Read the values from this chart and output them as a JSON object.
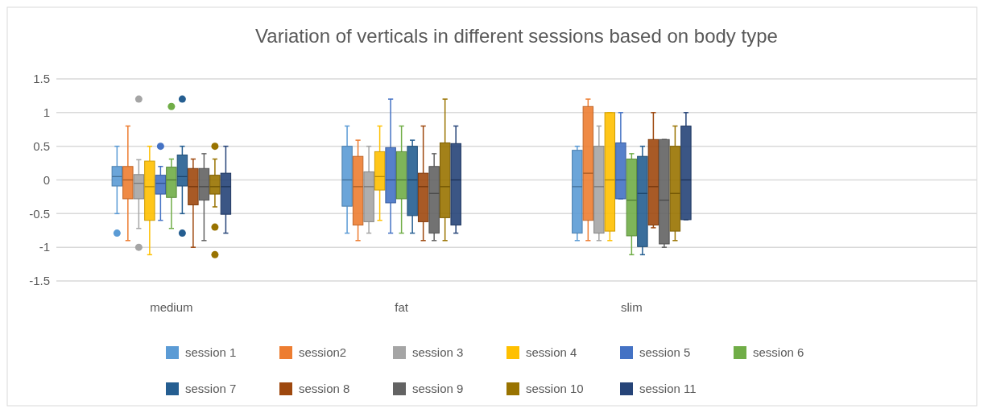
{
  "chart_data": {
    "type": "box",
    "title": "Variation of verticals in different sessions based on body type",
    "categories": [
      "medium",
      "fat",
      "slim",
      null
    ],
    "ylim": [
      -1.5,
      1.5
    ],
    "yticks": [
      -1.5,
      -1,
      -0.5,
      0,
      0.5,
      1,
      1.5
    ],
    "grid": "y",
    "legend": "bottom",
    "series": [
      {
        "name": "session 1",
        "color": "#5b9bd5",
        "boxes": [
          {
            "low": -0.5,
            "q1": -0.09,
            "median": 0.05,
            "q3": 0.2,
            "high": 0.5,
            "outliers": [
              -0.79
            ]
          },
          {
            "low": -0.79,
            "q1": -0.39,
            "median": 0.0,
            "q3": 0.5,
            "high": 0.8
          },
          {
            "low": -0.9,
            "q1": -0.79,
            "median": -0.1,
            "q3": 0.44,
            "high": 0.5
          },
          null
        ]
      },
      {
        "name": "session2",
        "color": "#ed7d31",
        "boxes": [
          {
            "low": -0.9,
            "q1": -0.28,
            "median": 0.0,
            "q3": 0.2,
            "high": 0.8
          },
          {
            "low": -0.9,
            "q1": -0.67,
            "median": -0.1,
            "q3": 0.35,
            "high": 0.59
          },
          {
            "low": -0.9,
            "q1": -0.6,
            "median": 0.1,
            "q3": 1.09,
            "high": 1.2
          },
          null
        ]
      },
      {
        "name": "session 3",
        "color": "#a5a5a5",
        "boxes": [
          {
            "low": -0.72,
            "q1": -0.28,
            "median": -0.05,
            "q3": 0.08,
            "high": 0.3,
            "outliers": [
              1.2,
              -1.0
            ]
          },
          {
            "low": -0.79,
            "q1": -0.62,
            "median": -0.1,
            "q3": 0.12,
            "high": 0.5
          },
          {
            "low": -0.9,
            "q1": -0.79,
            "median": -0.1,
            "q3": 0.5,
            "high": 0.8
          },
          null
        ]
      },
      {
        "name": "session 4",
        "color": "#ffc000",
        "boxes": [
          {
            "low": -1.11,
            "q1": -0.6,
            "median": -0.1,
            "q3": 0.28,
            "high": 0.5
          },
          {
            "low": -0.6,
            "q1": -0.15,
            "median": 0.05,
            "q3": 0.42,
            "high": 0.8
          },
          {
            "low": -0.9,
            "q1": -0.76,
            "median": 0.0,
            "q3": 1.0,
            "high": 1.0
          },
          null
        ]
      },
      {
        "name": "session 5",
        "color": "#4472c4",
        "boxes": [
          {
            "low": -0.6,
            "q1": -0.21,
            "median": -0.05,
            "q3": 0.07,
            "high": 0.2,
            "outliers": [
              0.5
            ]
          },
          {
            "low": -0.79,
            "q1": -0.34,
            "median": 0.0,
            "q3": 0.48,
            "high": 1.2
          },
          {
            "low": -0.28,
            "q1": -0.28,
            "median": 0.0,
            "q3": 0.55,
            "high": 1.0
          },
          null
        ]
      },
      {
        "name": "session 6",
        "color": "#70ad47",
        "boxes": [
          {
            "low": -0.72,
            "q1": -0.26,
            "median": 0.0,
            "q3": 0.19,
            "high": 0.31,
            "outliers": [
              1.09
            ]
          },
          {
            "low": -0.79,
            "q1": -0.28,
            "median": 0.0,
            "q3": 0.42,
            "high": 0.8
          },
          {
            "low": -1.11,
            "q1": -0.83,
            "median": -0.3,
            "q3": 0.31,
            "high": 0.39
          },
          null
        ]
      },
      {
        "name": "session 7",
        "color": "#255e91",
        "boxes": [
          {
            "low": -0.5,
            "q1": -0.09,
            "median": 0.05,
            "q3": 0.37,
            "high": 0.5,
            "outliers": [
              1.2,
              -0.79
            ]
          },
          {
            "low": -0.79,
            "q1": -0.53,
            "median": 0.0,
            "q3": 0.5,
            "high": 0.59
          },
          {
            "low": -1.11,
            "q1": -0.99,
            "median": -0.2,
            "q3": 0.35,
            "high": 0.5
          },
          null
        ]
      },
      {
        "name": "session 8",
        "color": "#9e480e",
        "boxes": [
          {
            "low": -1.0,
            "q1": -0.37,
            "median": -0.1,
            "q3": 0.17,
            "high": 0.31
          },
          {
            "low": -0.9,
            "q1": -0.62,
            "median": -0.1,
            "q3": 0.1,
            "high": 0.8
          },
          {
            "low": -0.71,
            "q1": -0.67,
            "median": -0.1,
            "q3": 0.6,
            "high": 1.0
          },
          null
        ]
      },
      {
        "name": "session 9",
        "color": "#636363",
        "boxes": [
          {
            "low": -0.9,
            "q1": -0.3,
            "median": -0.1,
            "q3": 0.17,
            "high": 0.39
          },
          {
            "low": -0.9,
            "q1": -0.79,
            "median": -0.2,
            "q3": 0.2,
            "high": 0.39
          },
          {
            "low": -1.0,
            "q1": -0.95,
            "median": -0.3,
            "q3": 0.6,
            "high": 0.6
          },
          null
        ]
      },
      {
        "name": "session 10",
        "color": "#997300",
        "boxes": [
          {
            "low": -0.4,
            "q1": -0.21,
            "median": -0.1,
            "q3": 0.07,
            "high": 0.31,
            "outliers": [
              0.5,
              -0.7,
              -1.11
            ]
          },
          {
            "low": -0.9,
            "q1": -0.56,
            "median": -0.1,
            "q3": 0.55,
            "high": 1.2
          },
          {
            "low": -0.9,
            "q1": -0.76,
            "median": -0.2,
            "q3": 0.5,
            "high": 0.8
          },
          null
        ]
      },
      {
        "name": "session 11",
        "color": "#264478",
        "boxes": [
          {
            "low": -0.79,
            "q1": -0.51,
            "median": -0.1,
            "q3": 0.1,
            "high": 0.5
          },
          {
            "low": -0.79,
            "q1": -0.67,
            "median": 0.0,
            "q3": 0.54,
            "high": 0.8
          },
          {
            "low": -0.59,
            "q1": -0.59,
            "median": 0.0,
            "q3": 0.8,
            "high": 1.0
          },
          null
        ]
      }
    ]
  }
}
